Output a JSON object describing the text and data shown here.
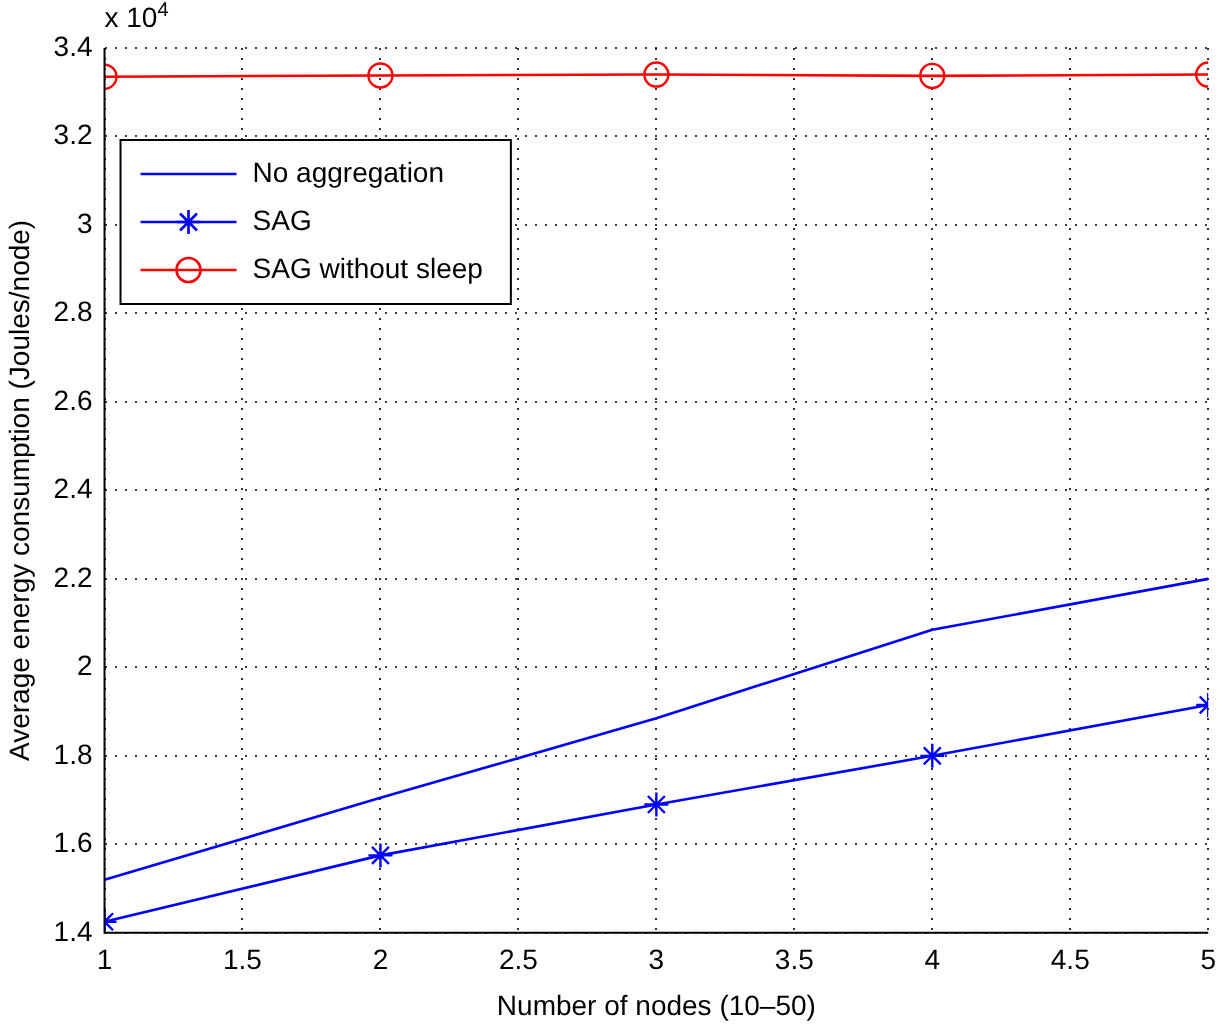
{
  "chart_data": {
    "type": "line",
    "xlabel": "Number of nodes (10–50)",
    "ylabel": "Average energy consumption (Joules/node)",
    "annotations": [
      "x 10$^{4}$"
    ],
    "x": [
      1,
      2,
      3,
      4,
      5
    ],
    "xlim": [
      1,
      5
    ],
    "xticks": [
      1,
      1.5,
      2,
      2.5,
      3,
      3.5,
      4,
      4.5,
      5
    ],
    "ylim": [
      1.4,
      3.4
    ],
    "yticks": [
      1.4,
      1.6,
      1.8,
      2,
      2.2,
      2.4,
      2.6,
      2.8,
      3,
      3.2,
      3.4
    ],
    "grid": true,
    "legend": "top left",
    "line_style": "solid",
    "series": [
      {
        "name": "No aggregation",
        "color": "#0000ff",
        "marker": "none",
        "values": [
          1.52,
          1.705,
          1.885,
          2.085,
          2.2
        ]
      },
      {
        "name": "SAG",
        "color": "#0000ff",
        "marker": "cross",
        "values": [
          1.425,
          1.575,
          1.69,
          1.8,
          1.915
        ]
      },
      {
        "name": "SAG without sleep",
        "color": "#ff0000",
        "marker": "circle",
        "values": [
          3.335,
          3.338,
          3.34,
          3.337,
          3.34
        ]
      }
    ]
  }
}
